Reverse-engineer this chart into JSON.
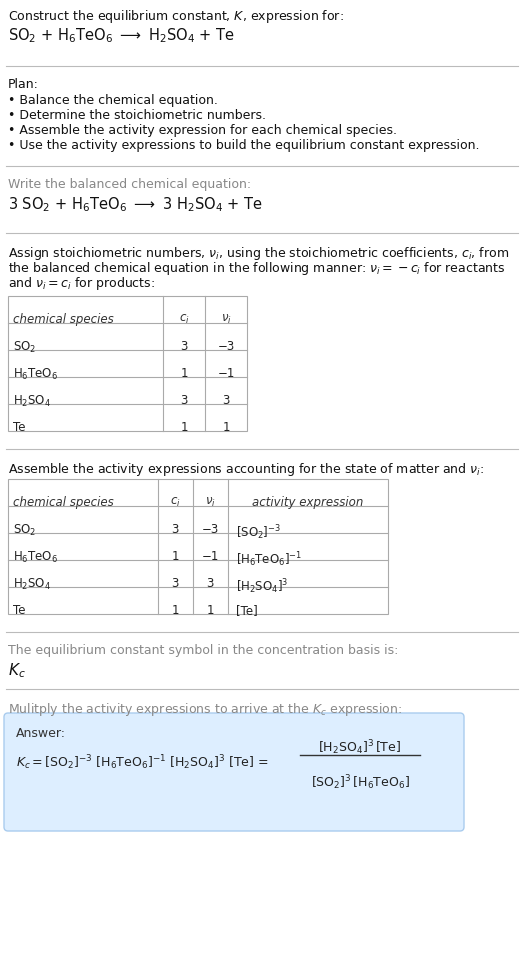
{
  "bg_color": "#ffffff",
  "answer_box_color": "#ddeeff",
  "answer_box_border": "#aaccee",
  "sections": {
    "title1": "Construct the equilibrium constant, $K$, expression for:",
    "title2_parts": [
      "SO",
      "2",
      " + H",
      "6",
      "TeO",
      "6",
      " ⟶ H",
      "2",
      "SO",
      "4",
      " + Te"
    ],
    "plan_header": "Plan:",
    "plan_items": [
      "• Balance the chemical equation.",
      "• Determine the stoichiometric numbers.",
      "• Assemble the activity expression for each chemical species.",
      "• Use the activity expressions to build the equilibrium constant expression."
    ],
    "balanced_header": "Write the balanced chemical equation:",
    "stoich_intro_lines": [
      "Assign stoichiometric numbers, $\\nu_i$, using the stoichiometric coefficients, $c_i$, from",
      "the balanced chemical equation in the following manner: $\\nu_i = -c_i$ for reactants",
      "and $\\nu_i = c_i$ for products:"
    ],
    "table1_headers": [
      "chemical species",
      "$c_i$",
      "$\\nu_i$"
    ],
    "table1_rows": [
      [
        "SO$_2$",
        "3",
        "−3"
      ],
      [
        "H$_6$TeO$_6$",
        "1",
        "−1"
      ],
      [
        "H$_2$SO$_4$",
        "3",
        "3"
      ],
      [
        "Te",
        "1",
        "1"
      ]
    ],
    "activity_intro": "Assemble the activity expressions accounting for the state of matter and $\\nu_i$:",
    "table2_headers": [
      "chemical species",
      "$c_i$",
      "$\\nu_i$",
      "activity expression"
    ],
    "table2_rows": [
      [
        "SO$_2$",
        "3",
        "−3",
        "[SO$_2$]$^{-3}$"
      ],
      [
        "H$_6$TeO$_6$",
        "1",
        "−1",
        "[H$_6$TeO$_6$]$^{-1}$"
      ],
      [
        "H$_2$SO$_4$",
        "3",
        "3",
        "[H$_2$SO$_4$]$^3$"
      ],
      [
        "Te",
        "1",
        "1",
        "[Te]"
      ]
    ],
    "kc_intro": "The equilibrium constant symbol in the concentration basis is:",
    "multiply_intro": "Mulitply the activity expressions to arrive at the $K_c$ expression:"
  }
}
